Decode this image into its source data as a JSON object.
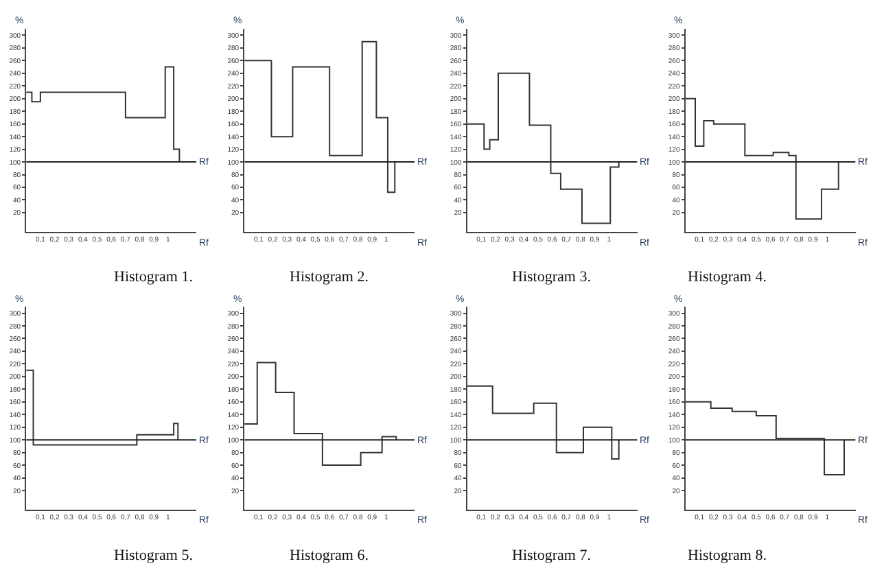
{
  "chart_data": [
    {
      "type": "step",
      "title": "Histogram 1.",
      "xlabel": "Rf",
      "ylabel": "%",
      "color": "#333333",
      "xlim": [
        0,
        1.2
      ],
      "ylim": [
        -10,
        310
      ],
      "xticks": [
        {
          "value": 0.1,
          "label": "0,1"
        },
        {
          "value": 0.2,
          "label": "0,2"
        },
        {
          "value": 0.3,
          "label": "0,3"
        },
        {
          "value": 0.4,
          "label": "0,4"
        },
        {
          "value": 0.5,
          "label": "0,5"
        },
        {
          "value": 0.6,
          "label": "0,6"
        },
        {
          "value": 0.7,
          "label": "0,7"
        },
        {
          "value": 0.8,
          "label": "0,8"
        },
        {
          "value": 0.9,
          "label": "0,9"
        },
        1
      ],
      "yticks": [
        20,
        40,
        60,
        80,
        100,
        120,
        140,
        160,
        180,
        200,
        220,
        240,
        260,
        280,
        300
      ],
      "ref_lines": [
        {
          "axis": "y",
          "value": 100,
          "label": "Rf"
        }
      ],
      "x": [
        0,
        0.04,
        0.1,
        0.7,
        0.98,
        1.04,
        1.08
      ],
      "values": [
        210,
        195,
        210,
        170,
        250,
        120,
        100
      ]
    },
    {
      "type": "step",
      "title": "Histogram 2.",
      "xlabel": "Rf",
      "ylabel": "%",
      "color": "#333333",
      "xlim": [
        0,
        1.2
      ],
      "ylim": [
        -10,
        310
      ],
      "xticks": [
        {
          "value": 0.1,
          "label": "0,1"
        },
        {
          "value": 0.2,
          "label": "0,2"
        },
        {
          "value": 0.3,
          "label": "0,3"
        },
        {
          "value": 0.4,
          "label": "0,4"
        },
        {
          "value": 0.5,
          "label": "0,5"
        },
        {
          "value": 0.6,
          "label": "0,6"
        },
        {
          "value": 0.7,
          "label": "0,7"
        },
        {
          "value": 0.8,
          "label": "0,8"
        },
        {
          "value": 0.9,
          "label": "0,9"
        },
        1
      ],
      "yticks": [
        20,
        40,
        60,
        80,
        100,
        120,
        140,
        160,
        180,
        200,
        220,
        240,
        260,
        280,
        300
      ],
      "ref_lines": [
        {
          "axis": "y",
          "value": 100,
          "label": "Rf"
        }
      ],
      "x": [
        0,
        0.19,
        0.34,
        0.6,
        0.83,
        0.93,
        1.01,
        1.06
      ],
      "values": [
        260,
        140,
        250,
        110,
        290,
        170,
        52,
        100
      ]
    },
    {
      "type": "step",
      "title": "Histogram 3.",
      "xlabel": "Rf",
      "ylabel": "%",
      "color": "#333333",
      "xlim": [
        0,
        1.2
      ],
      "ylim": [
        -10,
        310
      ],
      "xticks": [
        {
          "value": 0.1,
          "label": "0,1"
        },
        {
          "value": 0.2,
          "label": "0,2"
        },
        {
          "value": 0.3,
          "label": "0,3"
        },
        {
          "value": 0.4,
          "label": "0,4"
        },
        {
          "value": 0.5,
          "label": "0,5"
        },
        {
          "value": 0.6,
          "label": "0,6"
        },
        {
          "value": 0.7,
          "label": "0,7"
        },
        {
          "value": 0.8,
          "label": "0,8"
        },
        {
          "value": 0.9,
          "label": "0,9"
        },
        1
      ],
      "yticks": [
        20,
        40,
        60,
        80,
        100,
        120,
        140,
        160,
        180,
        200,
        220,
        240,
        260,
        280,
        300
      ],
      "ref_lines": [
        {
          "axis": "y",
          "value": 100,
          "label": "Rf"
        }
      ],
      "x": [
        0,
        0.12,
        0.16,
        0.22,
        0.44,
        0.59,
        0.66,
        0.81,
        1.01,
        1.07
      ],
      "values": [
        160,
        120,
        135,
        240,
        158,
        82,
        57,
        3,
        92,
        100
      ]
    },
    {
      "type": "step",
      "title": "Histogram 4.",
      "xlabel": "Rf",
      "ylabel": "%",
      "color": "#333333",
      "xlim": [
        0,
        1.2
      ],
      "ylim": [
        -10,
        310
      ],
      "xticks": [
        {
          "value": 0.1,
          "label": "0,1"
        },
        {
          "value": 0.2,
          "label": "0,2"
        },
        {
          "value": 0.3,
          "label": "0,3"
        },
        {
          "value": 0.4,
          "label": "0,4"
        },
        {
          "value": 0.5,
          "label": "0,5"
        },
        {
          "value": 0.6,
          "label": "0,6"
        },
        {
          "value": 0.7,
          "label": "0,7"
        },
        {
          "value": 0.8,
          "label": "0,8"
        },
        {
          "value": 0.9,
          "label": "0,9"
        },
        1
      ],
      "yticks": [
        20,
        40,
        60,
        80,
        100,
        120,
        140,
        160,
        180,
        200,
        220,
        240,
        260,
        280,
        300
      ],
      "ref_lines": [
        {
          "axis": "y",
          "value": 100,
          "label": "Rf"
        }
      ],
      "x": [
        0,
        0.07,
        0.13,
        0.2,
        0.42,
        0.62,
        0.73,
        0.78,
        0.96,
        1.08
      ],
      "values": [
        200,
        125,
        165,
        160,
        110,
        115,
        110,
        10,
        57,
        100
      ]
    },
    {
      "type": "step",
      "title": "Histogram 5.",
      "xlabel": "Rf",
      "ylabel": "%",
      "color": "#333333",
      "xlim": [
        0,
        1.2
      ],
      "ylim": [
        -10,
        310
      ],
      "xticks": [
        {
          "value": 0.1,
          "label": "0,1"
        },
        {
          "value": 0.2,
          "label": "0,2"
        },
        {
          "value": 0.3,
          "label": "0,3"
        },
        {
          "value": 0.4,
          "label": "0,4"
        },
        {
          "value": 0.5,
          "label": "0,5"
        },
        {
          "value": 0.6,
          "label": "0,6"
        },
        {
          "value": 0.7,
          "label": "0,7"
        },
        {
          "value": 0.8,
          "label": "0,8"
        },
        {
          "value": 0.9,
          "label": "0,9"
        },
        1
      ],
      "yticks": [
        20,
        40,
        60,
        80,
        100,
        120,
        140,
        160,
        180,
        200,
        220,
        240,
        260,
        280,
        300
      ],
      "ref_lines": [
        {
          "axis": "y",
          "value": 100,
          "label": "Rf"
        }
      ],
      "x": [
        0,
        0.05,
        0.78,
        1.04,
        1.07
      ],
      "values": [
        210,
        92,
        108,
        126,
        100
      ]
    },
    {
      "type": "step",
      "title": "Histogram 6.",
      "xlabel": "Rf",
      "ylabel": "%",
      "color": "#333333",
      "xlim": [
        0,
        1.2
      ],
      "ylim": [
        -10,
        310
      ],
      "xticks": [
        {
          "value": 0.1,
          "label": "0,1"
        },
        {
          "value": 0.2,
          "label": "0,2"
        },
        {
          "value": 0.3,
          "label": "0,3"
        },
        {
          "value": 0.4,
          "label": "0,4"
        },
        {
          "value": 0.5,
          "label": "0,5"
        },
        {
          "value": 0.6,
          "label": "0,6"
        },
        {
          "value": 0.7,
          "label": "0,7"
        },
        {
          "value": 0.8,
          "label": "0,8"
        },
        {
          "value": 0.9,
          "label": "0,9"
        },
        1
      ],
      "yticks": [
        20,
        40,
        60,
        80,
        100,
        120,
        140,
        160,
        180,
        200,
        220,
        240,
        260,
        280,
        300
      ],
      "ref_lines": [
        {
          "axis": "y",
          "value": 100,
          "label": "Rf"
        }
      ],
      "x": [
        0,
        0.09,
        0.22,
        0.35,
        0.55,
        0.82,
        0.97,
        1.07
      ],
      "values": [
        125,
        222,
        175,
        110,
        60,
        80,
        105,
        100
      ]
    },
    {
      "type": "step",
      "title": "Histogram 7.",
      "xlabel": "Rf",
      "ylabel": "%",
      "color": "#333333",
      "xlim": [
        0,
        1.2
      ],
      "ylim": [
        -10,
        310
      ],
      "xticks": [
        {
          "value": 0.1,
          "label": "0,1"
        },
        {
          "value": 0.2,
          "label": "0,2"
        },
        {
          "value": 0.3,
          "label": "0,3"
        },
        {
          "value": 0.4,
          "label": "0,4"
        },
        {
          "value": 0.5,
          "label": "0,5"
        },
        {
          "value": 0.6,
          "label": "0,6"
        },
        {
          "value": 0.7,
          "label": "0,7"
        },
        {
          "value": 0.8,
          "label": "0,8"
        },
        {
          "value": 0.9,
          "label": "0,9"
        },
        1
      ],
      "yticks": [
        20,
        40,
        60,
        80,
        100,
        120,
        140,
        160,
        180,
        200,
        220,
        240,
        260,
        280,
        300
      ],
      "ref_lines": [
        {
          "axis": "y",
          "value": 100,
          "label": "Rf"
        }
      ],
      "x": [
        0,
        0.18,
        0.47,
        0.63,
        0.82,
        1.02,
        1.07
      ],
      "values": [
        185,
        142,
        158,
        80,
        120,
        70,
        100
      ]
    },
    {
      "type": "step",
      "title": "Histogram 8.",
      "xlabel": "Rf",
      "ylabel": "%",
      "color": "#333333",
      "xlim": [
        0,
        1.2
      ],
      "ylim": [
        -10,
        310
      ],
      "xticks": [
        {
          "value": 0.1,
          "label": "0,1"
        },
        {
          "value": 0.2,
          "label": "0,2"
        },
        {
          "value": 0.3,
          "label": "0,3"
        },
        {
          "value": 0.4,
          "label": "0,4"
        },
        {
          "value": 0.5,
          "label": "0,5"
        },
        {
          "value": 0.6,
          "label": "0,6"
        },
        {
          "value": 0.7,
          "label": "0,7"
        },
        {
          "value": 0.8,
          "label": "0,8"
        },
        {
          "value": 0.9,
          "label": "0,9"
        },
        1
      ],
      "yticks": [
        20,
        40,
        60,
        80,
        100,
        120,
        140,
        160,
        180,
        200,
        220,
        240,
        260,
        280,
        300
      ],
      "ref_lines": [
        {
          "axis": "y",
          "value": 100,
          "label": "Rf"
        }
      ],
      "x": [
        0,
        0.18,
        0.33,
        0.5,
        0.64,
        0.98,
        1.12
      ],
      "values": [
        160,
        150,
        145,
        138,
        102,
        45,
        100
      ]
    }
  ]
}
